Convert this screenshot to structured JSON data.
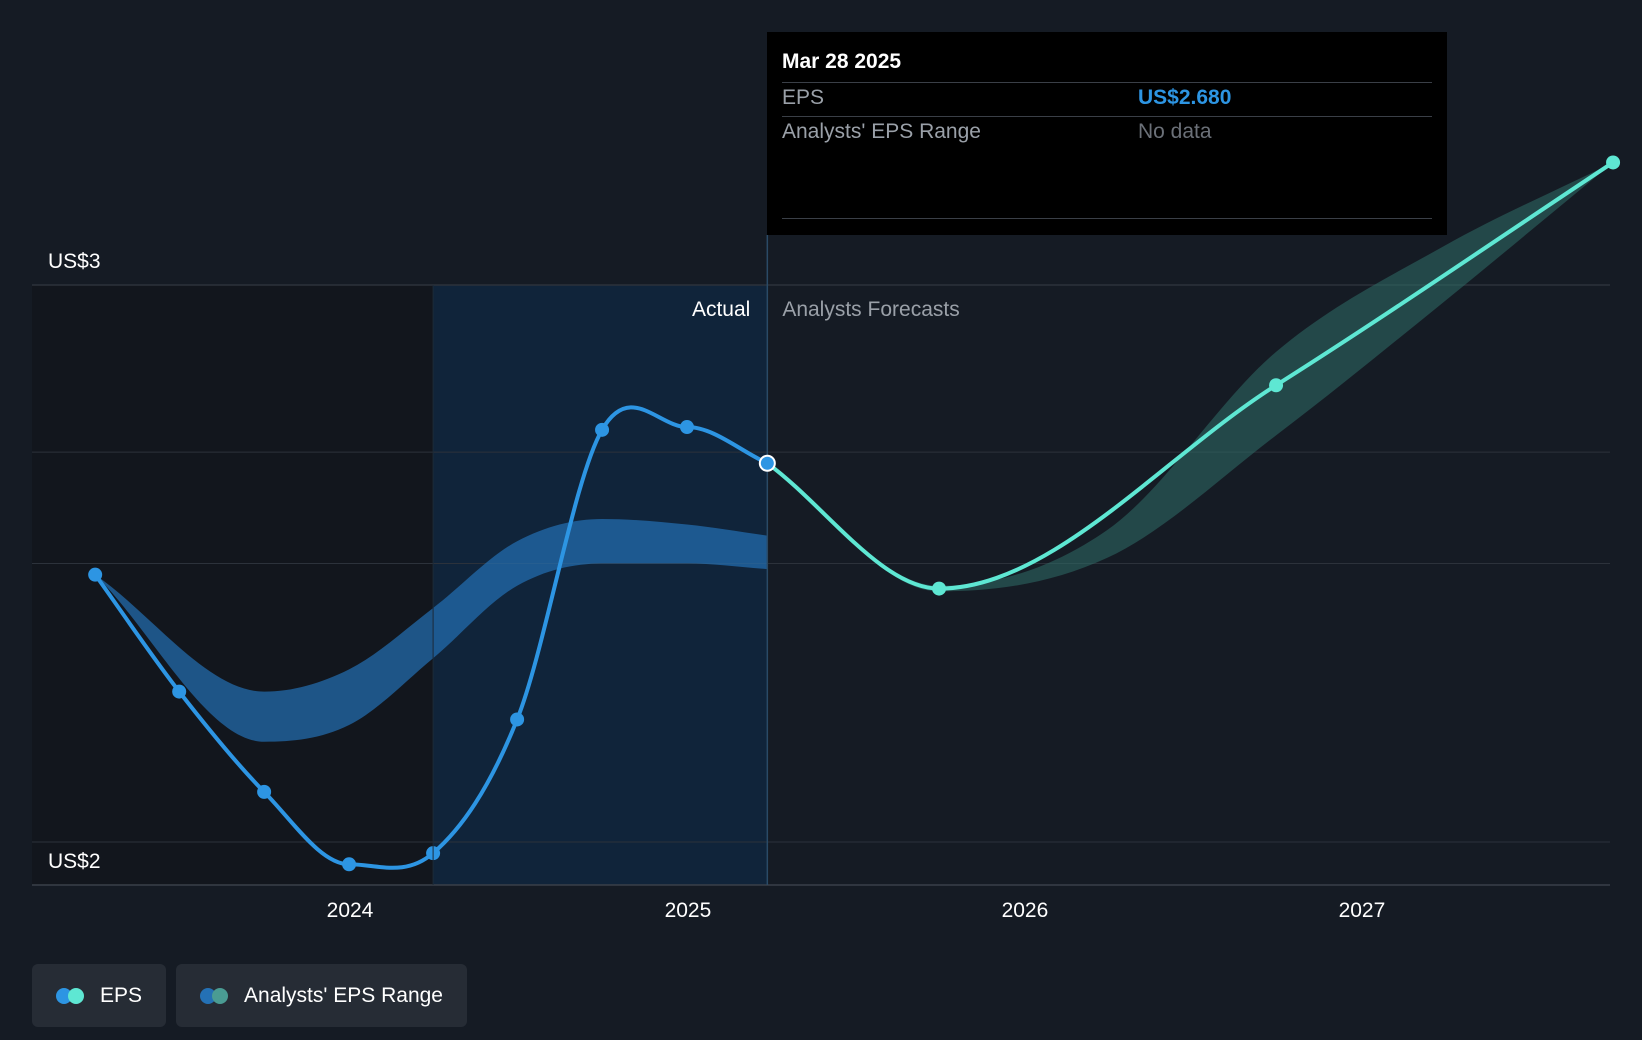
{
  "chart_data": {
    "type": "line",
    "y_axis": {
      "ticks": [
        {
          "value": 3,
          "label": "US$3"
        },
        {
          "value": 2,
          "label": "US$2"
        }
      ],
      "ylim": [
        1.9,
        3.0
      ]
    },
    "x_axis": {
      "ticks": [
        "2024",
        "2025",
        "2026",
        "2027"
      ],
      "xlim": [
        "2023-02",
        "2027-09"
      ]
    },
    "regions": {
      "actual_label": "Actual",
      "forecast_label": "Analysts Forecasts",
      "divider_date": "2025-03-28"
    },
    "series": [
      {
        "name": "EPS",
        "kind": "actual",
        "color": "#2d95e3",
        "points": [
          [
            "2023-03-31",
            2.48
          ],
          [
            "2023-06-30",
            2.27
          ],
          [
            "2023-09-30",
            2.09
          ],
          [
            "2023-12-31",
            1.96
          ],
          [
            "2024-03-31",
            1.98
          ],
          [
            "2024-06-30",
            2.22
          ],
          [
            "2024-09-30",
            2.74
          ],
          [
            "2024-12-31",
            2.745
          ],
          [
            "2025-03-28",
            2.68
          ]
        ]
      },
      {
        "name": "EPS",
        "kind": "forecast",
        "color": "#5ee7d3",
        "points": [
          [
            "2025-03-28",
            2.68
          ],
          [
            "2025-09-30",
            2.455
          ],
          [
            "2026-09-30",
            2.82
          ],
          [
            "2027-09-30",
            3.22
          ]
        ]
      }
    ],
    "ranges": [
      {
        "name": "Analysts' EPS Range",
        "kind": "actual",
        "color": "#2471b5",
        "upper": [
          [
            "2023-03-31",
            2.48
          ],
          [
            "2023-09-30",
            2.27
          ],
          [
            "2023-12-31",
            2.31
          ],
          [
            "2024-03-31",
            2.42
          ],
          [
            "2024-06-30",
            2.54
          ],
          [
            "2024-09-30",
            2.58
          ],
          [
            "2024-12-31",
            2.57
          ],
          [
            "2025-03-28",
            2.55
          ]
        ],
        "lower": [
          [
            "2023-03-31",
            2.48
          ],
          [
            "2023-09-30",
            2.18
          ],
          [
            "2023-12-31",
            2.21
          ],
          [
            "2024-03-31",
            2.33
          ],
          [
            "2024-06-30",
            2.46
          ],
          [
            "2024-09-30",
            2.5
          ],
          [
            "2024-12-31",
            2.5
          ],
          [
            "2025-03-28",
            2.49
          ]
        ]
      },
      {
        "name": "Analysts' EPS Range",
        "kind": "forecast",
        "color": "#2f6e68",
        "upper": [
          [
            "2025-03-28",
            2.68
          ],
          [
            "2025-09-30",
            2.46
          ],
          [
            "2026-03-31",
            2.56
          ],
          [
            "2026-09-30",
            2.88
          ],
          [
            "2027-03-31",
            3.07
          ],
          [
            "2027-09-30",
            3.22
          ]
        ],
        "lower": [
          [
            "2025-03-28",
            2.68
          ],
          [
            "2025-09-30",
            2.45
          ],
          [
            "2026-03-31",
            2.51
          ],
          [
            "2026-09-30",
            2.73
          ],
          [
            "2027-03-31",
            2.97
          ],
          [
            "2027-09-30",
            3.22
          ]
        ]
      }
    ],
    "highlight_date": "2025-03-28"
  },
  "tooltip": {
    "date": "Mar 28 2025",
    "eps_label": "EPS",
    "eps_value": "US$2.680",
    "range_label": "Analysts' EPS Range",
    "range_value": "No data"
  },
  "legend": [
    {
      "label": "EPS",
      "colors": [
        "#2d95e3",
        "#5ee7d3"
      ]
    },
    {
      "label": "Analysts' EPS Range",
      "colors": [
        "#2471b5",
        "#2f6e68"
      ]
    }
  ],
  "colors": {
    "background": "#151b24",
    "actual_shade": "#10243a",
    "past_shade": "#12161d",
    "grid": "#2c323b"
  }
}
